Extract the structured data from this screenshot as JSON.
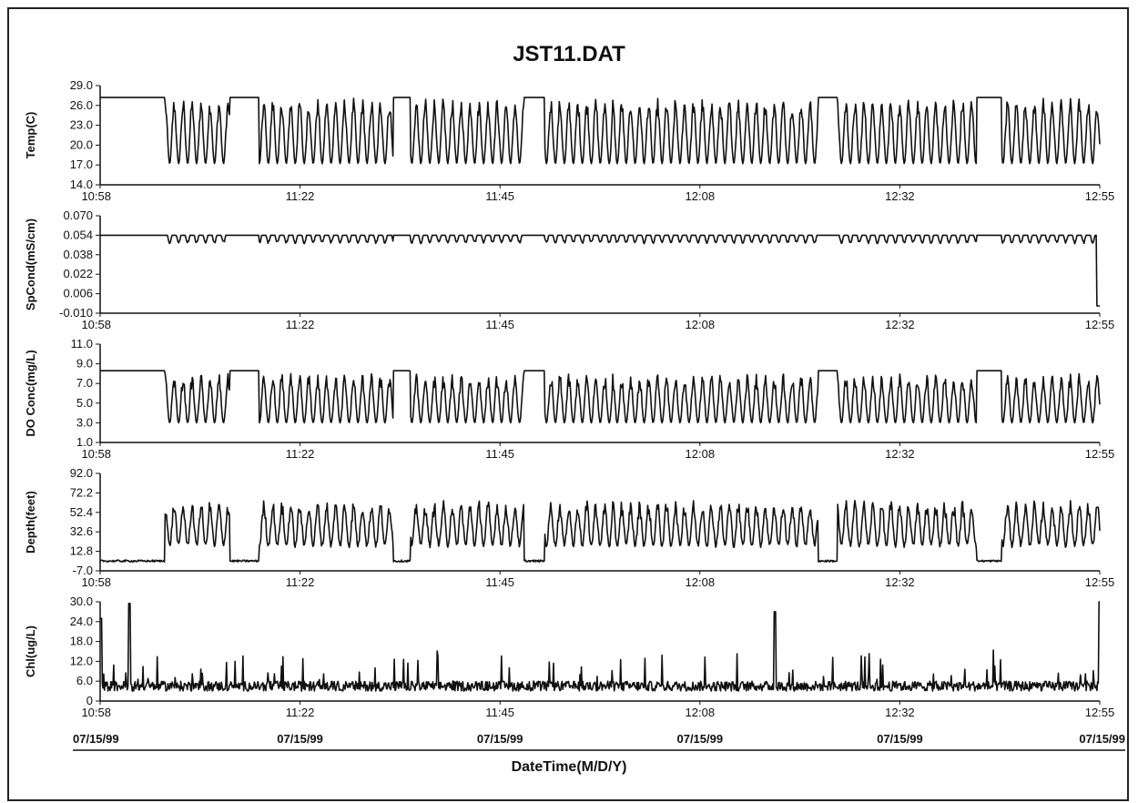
{
  "chart_data": {
    "type": "line",
    "title": "JST11.DAT",
    "xlabel": "DateTime(M/D/Y)",
    "x_ticks": [
      "10:58",
      "11:22",
      "11:45",
      "12:08",
      "12:32",
      "12:55"
    ],
    "date_ticks": [
      "07/15/99",
      "07/15/99",
      "07/15/99",
      "07/15/99",
      "07/15/99",
      "07/15/99"
    ],
    "time_range": [
      "10:58",
      "12:55"
    ],
    "grid": false,
    "panels": [
      {
        "ylabel": "Temp(C)",
        "ylim": [
          14.0,
          29.0
        ],
        "yticks": [
          "29.0",
          "26.0",
          "23.0",
          "20.0",
          "17.0",
          "14.0"
        ],
        "baseline": 27.2,
        "trough": 17.2,
        "high_segments": [
          [
            0,
            7.6
          ],
          [
            15.2,
            18.6
          ],
          [
            34.3,
            36.3
          ],
          [
            49.6,
            52.0
          ],
          [
            84.0,
            86.3
          ],
          [
            102.6,
            105.5
          ]
        ],
        "pattern": "oscillating"
      },
      {
        "ylabel": "SpCond(mS/cm)",
        "ylim": [
          -0.01,
          0.07
        ],
        "yticks": [
          "0.070",
          "0.054",
          "0.038",
          "0.022",
          "0.006",
          "-0.010"
        ],
        "baseline": 0.054,
        "trough": 0.047,
        "end_value": -0.004,
        "pattern": "flat-with-dips"
      },
      {
        "ylabel": "DO Conc(mg/L)",
        "ylim": [
          1.0,
          11.0
        ],
        "yticks": [
          "11.0",
          "9.0",
          "7.0",
          "5.0",
          "3.0",
          "1.0"
        ],
        "baseline": 8.3,
        "trough": 3.0,
        "pattern": "oscillating"
      },
      {
        "ylabel": "Depth(feet)",
        "ylim": [
          -7.0,
          92.0
        ],
        "yticks": [
          "92.0",
          "72.2",
          "52.4",
          "32.6",
          "12.8",
          "-7.0"
        ],
        "baseline": 2.0,
        "peak": 62.0,
        "pattern": "oscillating"
      },
      {
        "ylabel": "Chl(ug/L)",
        "ylim": [
          0,
          30.0
        ],
        "yticks": [
          "30.0",
          "24.0",
          "18.0",
          "12.0",
          "6.0",
          "0"
        ],
        "baseline": 3.0,
        "spikes": [
          [
            3.4,
            29.5
          ],
          [
            79.0,
            27.0
          ],
          [
            117.0,
            30.0
          ],
          [
            0.1,
            25.0
          ]
        ],
        "pattern": "noisy"
      }
    ]
  }
}
